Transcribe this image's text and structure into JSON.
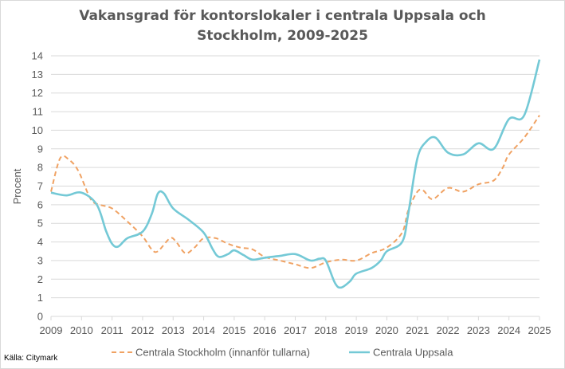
{
  "chart_data": {
    "type": "line",
    "title_lines": [
      "Vakansgrad för kontorslokaler i centrala Uppsala och",
      "Stockholm, 2009-2025"
    ],
    "ylabel": "Procent",
    "xlabel": "",
    "ylim": [
      0,
      14
    ],
    "xlim": [
      2009,
      2025
    ],
    "y_ticks": [
      0,
      1,
      2,
      3,
      4,
      5,
      6,
      7,
      8,
      9,
      10,
      11,
      12,
      13,
      14
    ],
    "x_ticks": [
      2009,
      2010,
      2011,
      2012,
      2013,
      2014,
      2015,
      2016,
      2017,
      2018,
      2019,
      2020,
      2021,
      2022,
      2023,
      2024,
      2025
    ],
    "grid": "horizontal",
    "legend_position": "bottom",
    "series": [
      {
        "name": "Centrala Stockholm (innanför tullarna)",
        "style": "dashed",
        "color": "#f0a263",
        "points": [
          [
            2009.0,
            6.7
          ],
          [
            2009.3,
            8.5
          ],
          [
            2009.6,
            8.4
          ],
          [
            2009.9,
            7.8
          ],
          [
            2010.3,
            6.3
          ],
          [
            2010.6,
            6.0
          ],
          [
            2011.0,
            5.8
          ],
          [
            2011.5,
            5.1
          ],
          [
            2012.0,
            4.3
          ],
          [
            2012.3,
            3.6
          ],
          [
            2012.5,
            3.5
          ],
          [
            2012.9,
            4.2
          ],
          [
            2013.1,
            4.0
          ],
          [
            2013.4,
            3.4
          ],
          [
            2013.7,
            3.7
          ],
          [
            2014.0,
            4.2
          ],
          [
            2014.4,
            4.2
          ],
          [
            2014.8,
            3.9
          ],
          [
            2015.2,
            3.7
          ],
          [
            2015.6,
            3.6
          ],
          [
            2016.0,
            3.2
          ],
          [
            2016.5,
            3.0
          ],
          [
            2017.0,
            2.8
          ],
          [
            2017.5,
            2.6
          ],
          [
            2018.0,
            2.9
          ],
          [
            2018.5,
            3.05
          ],
          [
            2019.0,
            3.0
          ],
          [
            2019.5,
            3.4
          ],
          [
            2020.0,
            3.7
          ],
          [
            2020.5,
            4.5
          ],
          [
            2020.7,
            5.7
          ],
          [
            2021.0,
            6.7
          ],
          [
            2021.2,
            6.75
          ],
          [
            2021.5,
            6.3
          ],
          [
            2022.0,
            6.9
          ],
          [
            2022.5,
            6.7
          ],
          [
            2023.0,
            7.1
          ],
          [
            2023.5,
            7.3
          ],
          [
            2023.8,
            8.0
          ],
          [
            2024.0,
            8.7
          ],
          [
            2024.5,
            9.6
          ],
          [
            2025.0,
            10.8
          ]
        ]
      },
      {
        "name": "Centrala Uppsala",
        "style": "solid",
        "color": "#74c9d6",
        "points": [
          [
            2009.0,
            6.65
          ],
          [
            2009.5,
            6.5
          ],
          [
            2010.0,
            6.65
          ],
          [
            2010.5,
            6.0
          ],
          [
            2010.8,
            4.6
          ],
          [
            2011.0,
            3.9
          ],
          [
            2011.2,
            3.75
          ],
          [
            2011.5,
            4.2
          ],
          [
            2012.0,
            4.55
          ],
          [
            2012.3,
            5.5
          ],
          [
            2012.5,
            6.6
          ],
          [
            2012.7,
            6.6
          ],
          [
            2013.0,
            5.8
          ],
          [
            2013.5,
            5.2
          ],
          [
            2014.0,
            4.5
          ],
          [
            2014.3,
            3.6
          ],
          [
            2014.5,
            3.2
          ],
          [
            2014.8,
            3.35
          ],
          [
            2015.0,
            3.55
          ],
          [
            2015.3,
            3.3
          ],
          [
            2015.6,
            3.05
          ],
          [
            2016.0,
            3.15
          ],
          [
            2016.5,
            3.25
          ],
          [
            2017.0,
            3.35
          ],
          [
            2017.5,
            3.0
          ],
          [
            2017.8,
            3.1
          ],
          [
            2018.0,
            3.0
          ],
          [
            2018.3,
            1.8
          ],
          [
            2018.5,
            1.55
          ],
          [
            2018.8,
            1.9
          ],
          [
            2019.0,
            2.3
          ],
          [
            2019.5,
            2.6
          ],
          [
            2019.8,
            3.0
          ],
          [
            2020.0,
            3.5
          ],
          [
            2020.5,
            4.0
          ],
          [
            2020.7,
            5.5
          ],
          [
            2021.0,
            8.5
          ],
          [
            2021.3,
            9.4
          ],
          [
            2021.6,
            9.6
          ],
          [
            2022.0,
            8.8
          ],
          [
            2022.5,
            8.7
          ],
          [
            2023.0,
            9.3
          ],
          [
            2023.5,
            9.0
          ],
          [
            2024.0,
            10.6
          ],
          [
            2024.5,
            10.8
          ],
          [
            2025.0,
            13.8
          ]
        ]
      }
    ],
    "source": "Källa: Citymark"
  }
}
